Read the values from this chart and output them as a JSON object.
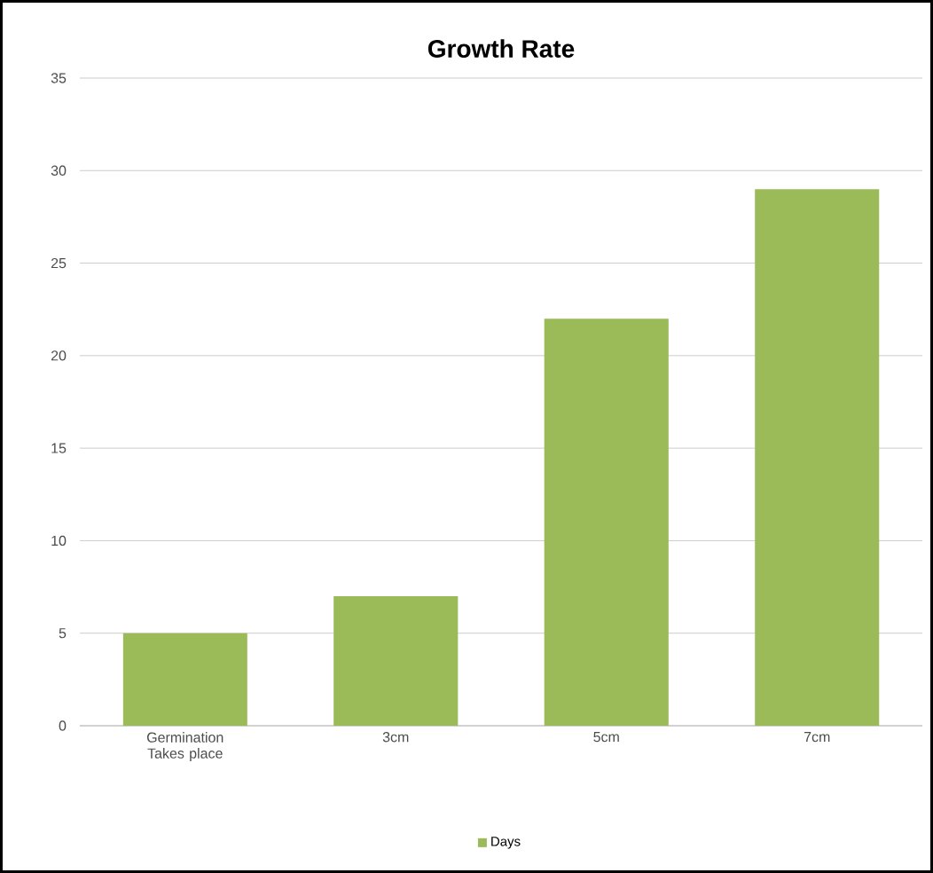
{
  "chart_data": {
    "type": "bar",
    "title": "Growth Rate",
    "categories": [
      "Germination Takes place",
      "3cm",
      "5cm",
      "7cm"
    ],
    "series": [
      {
        "name": "Days",
        "color": "#9bbb59",
        "values": [
          5,
          7,
          22,
          29
        ]
      }
    ],
    "ylim": [
      0,
      35
    ],
    "yticks": [
      0,
      5,
      10,
      15,
      20,
      25,
      30,
      35
    ],
    "grid": "y",
    "legend": "bottom"
  }
}
